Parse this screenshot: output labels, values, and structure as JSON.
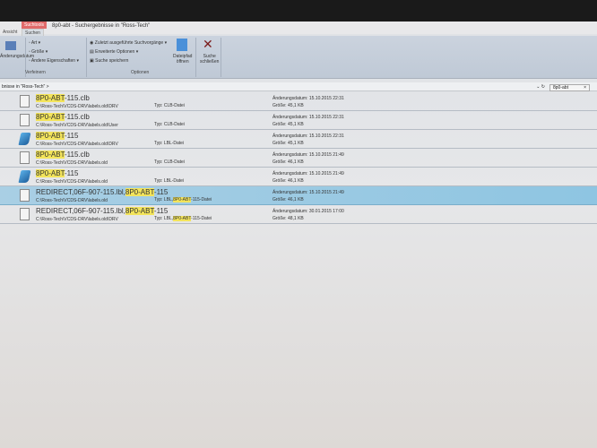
{
  "window": {
    "title": "8p0-abt - Suchergebnisse in \"Ross-Tech\"",
    "context_tab": "Suchtools"
  },
  "tabs": [
    {
      "label": "Ansicht"
    },
    {
      "label": "Suchen"
    }
  ],
  "ribbon": {
    "date_btn": "Änderungsdatum",
    "art": "Art",
    "groesse": "Größe",
    "eigenschaften": "Andere Eigenschaften",
    "group_verfeinern": "Verfeinern",
    "recent": "Zuletzt ausgeführte Suchvorgänge",
    "advanced": "Erweiterte Optionen",
    "save": "Suche speichern",
    "open_loc_1": "Dateipfad",
    "open_loc_2": "öffnen",
    "close_1": "Suche",
    "close_2": "schließen",
    "group_optionen": "Optionen"
  },
  "address": {
    "breadcrumb": "bnisse in \"Ross-Tech\"  >",
    "search_value": "8p0-abt"
  },
  "results": [
    {
      "pre": "",
      "hl": "8P0-ABT",
      "post": "-115.clb",
      "path": "C:\\Ross-Tech\\VCDS-DRV\\labels.old\\DRV",
      "type_pre": "Typ: CLB-Datei",
      "type_hl": "",
      "type_post": "",
      "date": "Änderungsdatum: 15.10.2015 22:31",
      "size": "Größe: 45,1 KB",
      "icon": "document-icon",
      "selected": false
    },
    {
      "pre": "",
      "hl": "8P0-ABT",
      "post": "-115.clb",
      "path": "C:\\Ross-Tech\\VCDS-DRV\\labels.old\\User",
      "type_pre": "Typ: CLB-Datei",
      "type_hl": "",
      "type_post": "",
      "date": "Änderungsdatum: 15.10.2015 22:31",
      "size": "Größe: 45,1 KB",
      "icon": "document-icon",
      "selected": false
    },
    {
      "pre": "",
      "hl": "8P0-ABT",
      "post": "-115",
      "path": "C:\\Ross-Tech\\VCDS-DRV\\labels.old\\DRV",
      "type_pre": "Typ: LBL-Datei",
      "type_hl": "",
      "type_post": "",
      "date": "Änderungsdatum: 15.10.2015 22:31",
      "size": "Größe: 45,1 KB",
      "icon": "lbl-file-icon",
      "selected": false
    },
    {
      "pre": "",
      "hl": "8P0-ABT",
      "post": "-115.clb",
      "path": "C:\\Ross-Tech\\VCDS-DRV\\labels.old",
      "type_pre": "Typ: CLB-Datei",
      "type_hl": "",
      "type_post": "",
      "date": "Änderungsdatum: 15.10.2015 21:49",
      "size": "Größe: 46,1 KB",
      "icon": "document-icon",
      "selected": false
    },
    {
      "pre": "",
      "hl": "8P0-ABT",
      "post": "-115",
      "path": "C:\\Ross-Tech\\VCDS-DRV\\labels.old",
      "type_pre": "Typ: LBL-Datei",
      "type_hl": "",
      "type_post": "",
      "date": "Änderungsdatum: 15.10.2015 21:49",
      "size": "Größe: 46,1 KB",
      "icon": "lbl-file-icon",
      "selected": false
    },
    {
      "pre": "REDIRECT,06F-907-115.lbl,",
      "hl": "8P0-ABT",
      "post": "-115",
      "path": "C:\\Ross-Tech\\VCDS-DRV\\labels.old",
      "type_pre": "Typ: LBL,",
      "type_hl": "8P0-ABT",
      "type_post": "-115-Datei",
      "date": "Änderungsdatum: 15.10.2015 21:49",
      "size": "Größe: 46,1 KB",
      "icon": "document-icon",
      "selected": true
    },
    {
      "pre": "REDIRECT,06F-907-115.lbl,",
      "hl": "8P0-ABT",
      "post": "-115",
      "path": "C:\\Ross-Tech\\VCDS-DRV\\labels.old\\DRV",
      "type_pre": "Typ: LBL,",
      "type_hl": "8P0-ABT",
      "type_post": "-115-Datei",
      "date": "Änderungsdatum: 30.01.2015 17:00",
      "size": "Größe: 48,1 KB",
      "icon": "document-icon",
      "selected": false
    }
  ]
}
